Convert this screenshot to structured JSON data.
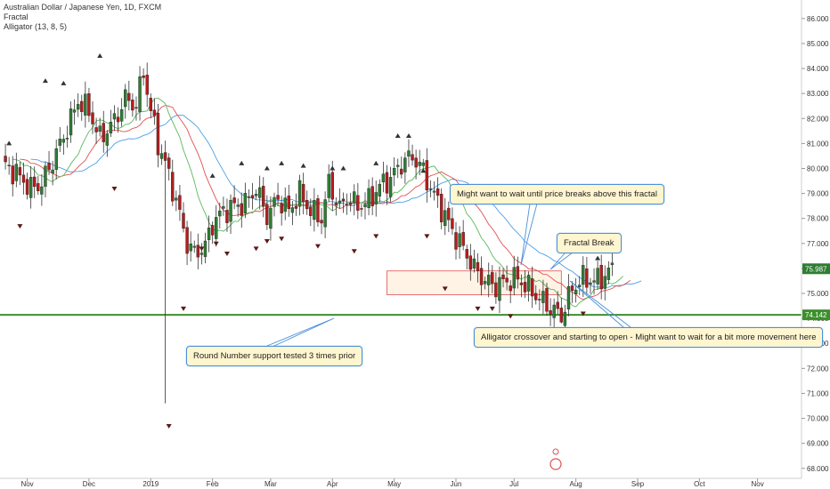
{
  "header": {
    "symbol_line": "Australian Dollar / Japanese Yen, 1D, FXCM",
    "indicator_1": "Fractal",
    "indicator_2": "Alligator (13, 8, 5)"
  },
  "colors": {
    "up_candle": "#2e7d32",
    "down_candle": "#b71c1c",
    "jaw": "#4a9fe6",
    "teeth": "#e05050",
    "lips": "#5cb85c",
    "support_line": "#3c8f2c",
    "zone_fill": "#fff3e6",
    "zone_border": "#e05050",
    "callout_border": "#4a90d9",
    "callout_fill": "#fff6d0"
  },
  "annotations": {
    "fractal_wait": "Might want to wait until price breaks above this fractal",
    "fractal_break": "Fractal Break",
    "alligator_note": "Alligator crossover and starting to open - Might want to wait for a bit more movement here",
    "support_note": "Round Number support tested 3 times prior"
  },
  "chart_data": {
    "type": "candlestick",
    "title": "Australian Dollar / Japanese Yen, 1D, FXCM",
    "xlabel": "",
    "ylabel": "",
    "ylim": [
      67.6,
      86.6
    ],
    "x_ticks": [
      "Nov",
      "Dec",
      "2019",
      "Feb",
      "Mar",
      "Apr",
      "May",
      "Jun",
      "Jul",
      "Aug",
      "Sep",
      "Oct",
      "Nov"
    ],
    "y_ticks": [
      "68.000",
      "69.000",
      "70.000",
      "71.000",
      "72.000",
      "73.000",
      "74.000",
      "75.000",
      "76.000",
      "77.000",
      "78.000",
      "79.000",
      "80.000",
      "81.000",
      "82.000",
      "83.000",
      "84.000",
      "85.000",
      "86.000"
    ],
    "current_price": "75.987",
    "support_level": "74.142",
    "support_value": 74.142,
    "close_path": [
      [
        0,
        80.2
      ],
      [
        4,
        79.8
      ],
      [
        8,
        79.2
      ],
      [
        11,
        79.4
      ],
      [
        14,
        80.3
      ],
      [
        18,
        81.6
      ],
      [
        21,
        82.7
      ],
      [
        24,
        82.3
      ],
      [
        27,
        81.2
      ],
      [
        31,
        81.9
      ],
      [
        34,
        82.8
      ],
      [
        37,
        82.5
      ],
      [
        39,
        83.9
      ],
      [
        41,
        82.3
      ],
      [
        43,
        81.0
      ],
      [
        45,
        80.2
      ],
      [
        48,
        78.7
      ],
      [
        51,
        77.0
      ],
      [
        53,
        76.6
      ],
      [
        56,
        76.9
      ],
      [
        58,
        77.8
      ],
      [
        61,
        78.3
      ],
      [
        64,
        78.5
      ],
      [
        67,
        78.6
      ],
      [
        70,
        79.2
      ],
      [
        73,
        78.1
      ],
      [
        76,
        78.8
      ],
      [
        79,
        78.3
      ],
      [
        82,
        79.0
      ],
      [
        85,
        78.3
      ],
      [
        88,
        78.0
      ],
      [
        90,
        79.4
      ],
      [
        93,
        78.4
      ],
      [
        95,
        78.8
      ],
      [
        98,
        78.5
      ],
      [
        101,
        78.7
      ],
      [
        104,
        79.3
      ],
      [
        107,
        79.6
      ],
      [
        110,
        80.2
      ],
      [
        113,
        80.5
      ],
      [
        116,
        79.9
      ],
      [
        118,
        79.2
      ],
      [
        121,
        78.4
      ],
      [
        124,
        77.5
      ],
      [
        127,
        76.8
      ],
      [
        130,
        76.0
      ],
      [
        133,
        75.5
      ],
      [
        136,
        75.3
      ],
      [
        139,
        75.5
      ],
      [
        142,
        75.6
      ],
      [
        145,
        75.2
      ],
      [
        148,
        74.8
      ],
      [
        151,
        74.4
      ],
      [
        154,
        74.1
      ],
      [
        157,
        75.2
      ],
      [
        160,
        75.6
      ],
      [
        163,
        75.5
      ],
      [
        166,
        75.7
      ],
      [
        168,
        76.0
      ]
    ],
    "alligator": {
      "jaw_period": 13,
      "teeth_period": 8,
      "lips_period": 5,
      "jaw_shift": 8,
      "teeth_shift": 5,
      "lips_shift": 3
    },
    "wick_lows": [
      {
        "day": 45,
        "low": 70.6
      },
      {
        "day": 154,
        "low": 73.8
      }
    ],
    "fractals_up": [
      [
        2,
        81.0
      ],
      [
        12,
        83.5
      ],
      [
        17,
        83.4
      ],
      [
        27,
        84.5
      ],
      [
        58,
        79.7
      ],
      [
        66,
        80.2
      ],
      [
        73,
        80.0
      ],
      [
        77,
        80.2
      ],
      [
        83,
        80.1
      ],
      [
        91,
        80.0
      ],
      [
        94,
        80.0
      ],
      [
        103,
        80.2
      ],
      [
        109,
        81.3
      ],
      [
        112,
        81.3
      ],
      [
        116,
        79.9
      ],
      [
        157,
        76.8
      ],
      [
        160,
        76.8
      ],
      [
        164,
        76.4
      ]
    ],
    "fractals_down": [
      [
        5,
        77.7
      ],
      [
        31,
        79.2
      ],
      [
        46,
        69.7
      ],
      [
        50,
        74.4
      ],
      [
        55,
        76.8
      ],
      [
        59,
        77.0
      ],
      [
        62,
        76.6
      ],
      [
        70,
        76.8
      ],
      [
        73,
        77.1
      ],
      [
        77,
        77.2
      ],
      [
        87,
        76.9
      ],
      [
        97,
        76.7
      ],
      [
        103,
        77.3
      ],
      [
        117,
        77.3
      ],
      [
        122,
        75.2
      ],
      [
        131,
        74.4
      ],
      [
        135,
        74.4
      ],
      [
        140,
        74.1
      ],
      [
        149,
        73.0
      ],
      [
        160,
        74.2
      ]
    ]
  }
}
